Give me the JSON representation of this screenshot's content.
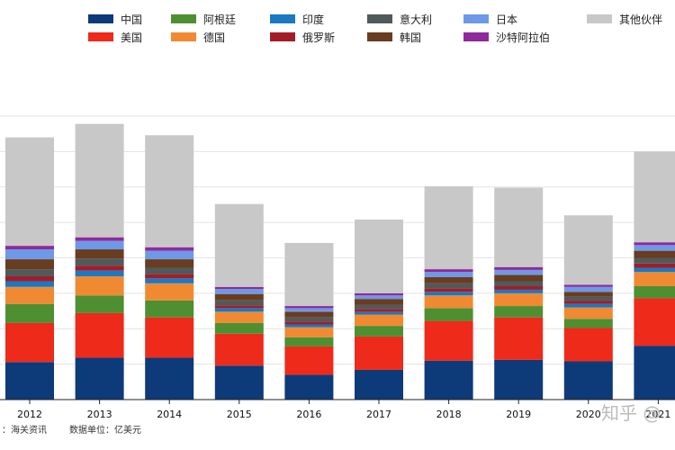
{
  "chart_data": {
    "type": "bar",
    "stacked": true,
    "categories": [
      "2012",
      "2013",
      "2014",
      "2015",
      "2016",
      "2017",
      "2018",
      "2019",
      "2020",
      "2021"
    ],
    "ylim": [
      0,
      400
    ],
    "grid": true,
    "legend_position": "top",
    "series": [
      {
        "name": "中国",
        "color": "#0d3a78",
        "values": [
          53,
          59,
          59,
          48,
          35,
          42,
          55,
          56,
          54,
          76
        ]
      },
      {
        "name": "美国",
        "color": "#ee2a1a",
        "values": [
          55,
          63,
          57,
          45,
          40,
          47,
          56,
          60,
          47,
          67
        ]
      },
      {
        "name": "阿根廷",
        "color": "#4e8f32",
        "values": [
          27,
          25,
          24,
          15,
          13,
          15,
          18,
          16,
          13,
          17
        ]
      },
      {
        "name": "德国",
        "color": "#f08a32",
        "values": [
          24,
          27,
          24,
          16,
          14,
          16,
          18,
          18,
          16,
          20
        ]
      },
      {
        "name": "印度",
        "color": "#1b78c2",
        "values": [
          8,
          8,
          7,
          5,
          4,
          4,
          5,
          5,
          5,
          6
        ]
      },
      {
        "name": "俄罗斯",
        "color": "#a21d27",
        "values": [
          7,
          7,
          6,
          4,
          4,
          4,
          5,
          5,
          4,
          6
        ]
      },
      {
        "name": "意大利",
        "color": "#505a5a",
        "values": [
          10,
          10,
          9,
          7,
          6,
          6,
          7,
          7,
          6,
          8
        ]
      },
      {
        "name": "韩国",
        "color": "#6a3c20",
        "values": [
          14,
          13,
          12,
          9,
          8,
          8,
          9,
          9,
          7,
          10
        ]
      },
      {
        "name": "日本",
        "color": "#6d99e6",
        "values": [
          14,
          12,
          12,
          7,
          5,
          5,
          7,
          7,
          7,
          8
        ]
      },
      {
        "name": "沙特阿拉伯",
        "color": "#8e2a9a",
        "values": [
          5,
          5,
          5,
          3,
          3,
          3,
          4,
          4,
          3,
          4
        ]
      },
      {
        "name": "其他伙伴",
        "color": "#c8c8c8",
        "values": [
          153,
          160,
          158,
          117,
          89,
          104,
          117,
          112,
          98,
          128
        ]
      }
    ]
  },
  "source_note": "：海关资讯",
  "unit_note": "数据单位：亿美元",
  "watermark": "知乎 @"
}
